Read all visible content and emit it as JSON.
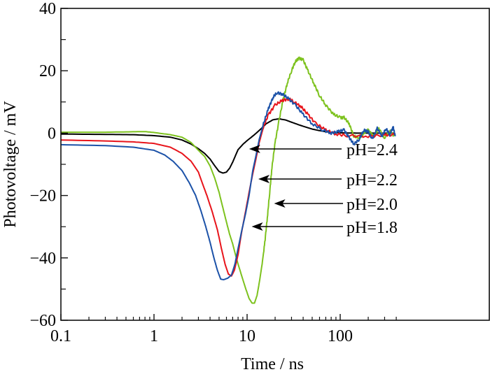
{
  "chart_data": {
    "type": "line",
    "title": "",
    "xlabel": "Time / ns",
    "ylabel": "Photovoltage / mV",
    "xscale": "log",
    "xlim": [
      0.1,
      450
    ],
    "ylim": [
      -60,
      40
    ],
    "grid": false,
    "legend": "none (inline arrow annotations)",
    "x_ticks": [
      {
        "value": 0.1,
        "label": "0.1"
      },
      {
        "value": 1,
        "label": "1"
      },
      {
        "value": 10,
        "label": "10"
      },
      {
        "value": 100,
        "label": "100"
      }
    ],
    "y_ticks": [
      {
        "value": 40,
        "label": "40"
      },
      {
        "value": 20,
        "label": "20"
      },
      {
        "value": 0,
        "label": "0"
      },
      {
        "value": -20,
        "label": "−20"
      },
      {
        "value": -40,
        "label": "−40"
      },
      {
        "value": -60,
        "label": "−60"
      }
    ],
    "y_minor_ticks": [
      30,
      10,
      -10,
      -30,
      -50
    ],
    "series": [
      {
        "name": "pH=2.4",
        "color": "#000000",
        "points": [
          [
            0.1,
            -0.3
          ],
          [
            0.3,
            -0.4
          ],
          [
            0.6,
            -0.5
          ],
          [
            1,
            -0.8
          ],
          [
            1.5,
            -1.3
          ],
          [
            2,
            -2.2
          ],
          [
            2.5,
            -3.5
          ],
          [
            3,
            -5
          ],
          [
            3.5,
            -6.5
          ],
          [
            4,
            -8.3
          ],
          [
            4.5,
            -10.5
          ],
          [
            5,
            -12.3
          ],
          [
            5.5,
            -12.8
          ],
          [
            6,
            -12.5
          ],
          [
            6.5,
            -11.2
          ],
          [
            7,
            -9.3
          ],
          [
            7.5,
            -7.2
          ],
          [
            8,
            -5.3
          ],
          [
            9,
            -3.6
          ],
          [
            10,
            -2.4
          ],
          [
            12,
            -0.5
          ],
          [
            14,
            1.3
          ],
          [
            16,
            3
          ],
          [
            19,
            4.3
          ],
          [
            22,
            4.6
          ],
          [
            26,
            4.2
          ],
          [
            32,
            3.2
          ],
          [
            40,
            2.2
          ],
          [
            50,
            1.3
          ],
          [
            65,
            0.6
          ],
          [
            80,
            0.2
          ],
          [
            100,
            0.1
          ],
          [
            150,
            0
          ],
          [
            250,
            0
          ],
          [
            380,
            0
          ]
        ]
      },
      {
        "name": "pH=2.2",
        "color": "#e8141b",
        "points": [
          [
            0.1,
            -2.2
          ],
          [
            0.3,
            -2.5
          ],
          [
            0.6,
            -2.8
          ],
          [
            1,
            -3.3
          ],
          [
            1.5,
            -4.5
          ],
          [
            2,
            -6.5
          ],
          [
            2.5,
            -9
          ],
          [
            3,
            -12.5
          ],
          [
            3.3,
            -16
          ],
          [
            3.7,
            -20
          ],
          [
            4.2,
            -25
          ],
          [
            4.8,
            -31
          ],
          [
            5.3,
            -37
          ],
          [
            5.8,
            -42
          ],
          [
            6.3,
            -45.2
          ],
          [
            6.8,
            -45.8
          ],
          [
            7.3,
            -44
          ],
          [
            8,
            -39
          ],
          [
            8.7,
            -32
          ],
          [
            9.5,
            -26
          ],
          [
            10.5,
            -19
          ],
          [
            11.5,
            -13
          ],
          [
            12.5,
            -8
          ],
          [
            13.5,
            -3
          ],
          [
            15,
            2
          ],
          [
            17,
            6
          ],
          [
            20,
            9
          ],
          [
            24,
            10.5
          ],
          [
            28,
            11
          ],
          [
            32,
            10
          ],
          [
            38,
            8.5
          ],
          [
            45,
            6
          ],
          [
            55,
            3
          ],
          [
            70,
            1
          ],
          [
            90,
            -0.3
          ],
          [
            120,
            -0.8
          ],
          [
            200,
            -1
          ],
          [
            300,
            -0.6
          ],
          [
            380,
            -0.5
          ]
        ]
      },
      {
        "name": "pH=2.0",
        "color": "#7dc21e",
        "points": [
          [
            0.1,
            0.3
          ],
          [
            0.3,
            0.3
          ],
          [
            0.5,
            0.4
          ],
          [
            0.8,
            0.5
          ],
          [
            1,
            0.2
          ],
          [
            1.5,
            -0.5
          ],
          [
            2,
            -1.3
          ],
          [
            2.5,
            -3
          ],
          [
            3,
            -5.5
          ],
          [
            3.5,
            -7.5
          ],
          [
            4,
            -10.5
          ],
          [
            4.5,
            -14.5
          ],
          [
            5,
            -19
          ],
          [
            5.5,
            -24
          ],
          [
            6,
            -28.5
          ],
          [
            6.5,
            -32.5
          ],
          [
            7,
            -35.5
          ],
          [
            7.5,
            -39
          ],
          [
            8,
            -42
          ],
          [
            8.8,
            -46
          ],
          [
            9.7,
            -50
          ],
          [
            10.5,
            -53
          ],
          [
            11.3,
            -54.5
          ],
          [
            12,
            -54.5
          ],
          [
            12.8,
            -52
          ],
          [
            13.5,
            -48
          ],
          [
            14.5,
            -42
          ],
          [
            15.5,
            -35
          ],
          [
            16.5,
            -27
          ],
          [
            17.5,
            -19
          ],
          [
            18.5,
            -11
          ],
          [
            20,
            -3
          ],
          [
            22,
            4
          ],
          [
            24.5,
            11
          ],
          [
            27,
            16
          ],
          [
            30,
            20
          ],
          [
            33,
            23
          ],
          [
            36,
            24
          ],
          [
            40,
            23.5
          ],
          [
            45,
            20
          ],
          [
            52,
            16
          ],
          [
            60,
            12
          ],
          [
            70,
            9
          ],
          [
            85,
            6
          ],
          [
            100,
            5
          ],
          [
            110,
            5
          ],
          [
            125,
            3
          ],
          [
            140,
            -1
          ],
          [
            160,
            -1.5
          ],
          [
            180,
            0
          ],
          [
            200,
            1
          ],
          [
            230,
            -1
          ],
          [
            260,
            1.5
          ],
          [
            300,
            -1.5
          ],
          [
            340,
            1
          ],
          [
            380,
            -1
          ]
        ]
      },
      {
        "name": "pH=1.8",
        "color": "#1c52a8",
        "points": [
          [
            0.1,
            -3.7
          ],
          [
            0.3,
            -4
          ],
          [
            0.6,
            -4.5
          ],
          [
            1,
            -5.5
          ],
          [
            1.3,
            -7
          ],
          [
            1.6,
            -9
          ],
          [
            2,
            -12
          ],
          [
            2.4,
            -16
          ],
          [
            2.8,
            -20
          ],
          [
            3.2,
            -25
          ],
          [
            3.6,
            -30
          ],
          [
            4,
            -35
          ],
          [
            4.4,
            -40
          ],
          [
            4.8,
            -44
          ],
          [
            5.2,
            -46.8
          ],
          [
            5.6,
            -47
          ],
          [
            6.2,
            -46.5
          ],
          [
            6.8,
            -45.5
          ],
          [
            7.4,
            -42
          ],
          [
            8,
            -37
          ],
          [
            8.8,
            -31
          ],
          [
            9.6,
            -26
          ],
          [
            10.5,
            -20
          ],
          [
            11.5,
            -12
          ],
          [
            12.5,
            -7
          ],
          [
            13.5,
            -2
          ],
          [
            15,
            3
          ],
          [
            17,
            8
          ],
          [
            19,
            11.5
          ],
          [
            21,
            13
          ],
          [
            24,
            12.5
          ],
          [
            28,
            11
          ],
          [
            33,
            9
          ],
          [
            40,
            6
          ],
          [
            50,
            3
          ],
          [
            65,
            1
          ],
          [
            80,
            0
          ],
          [
            95,
            0.5
          ],
          [
            110,
            1
          ],
          [
            125,
            -1.5
          ],
          [
            140,
            -3.5
          ],
          [
            160,
            -2
          ],
          [
            180,
            1
          ],
          [
            200,
            0.5
          ],
          [
            220,
            -2
          ],
          [
            250,
            1.5
          ],
          [
            280,
            -1
          ],
          [
            310,
            1.5
          ],
          [
            340,
            -0.5
          ],
          [
            370,
            2
          ],
          [
            390,
            -1
          ]
        ]
      }
    ],
    "annotations": [
      {
        "text": "pH=2.4",
        "series": "pH=2.4",
        "arrow_to": [
          10.5,
          -2
        ]
      },
      {
        "text": "pH=2.2",
        "series": "pH=2.2",
        "arrow_to": [
          13.2,
          -12
        ]
      },
      {
        "text": "pH=2.0",
        "series": "pH=2.0",
        "arrow_to": [
          19.5,
          -21
        ]
      },
      {
        "text": "pH=1.8",
        "series": "pH=1.8",
        "arrow_to": [
          11.2,
          -29
        ]
      }
    ]
  }
}
